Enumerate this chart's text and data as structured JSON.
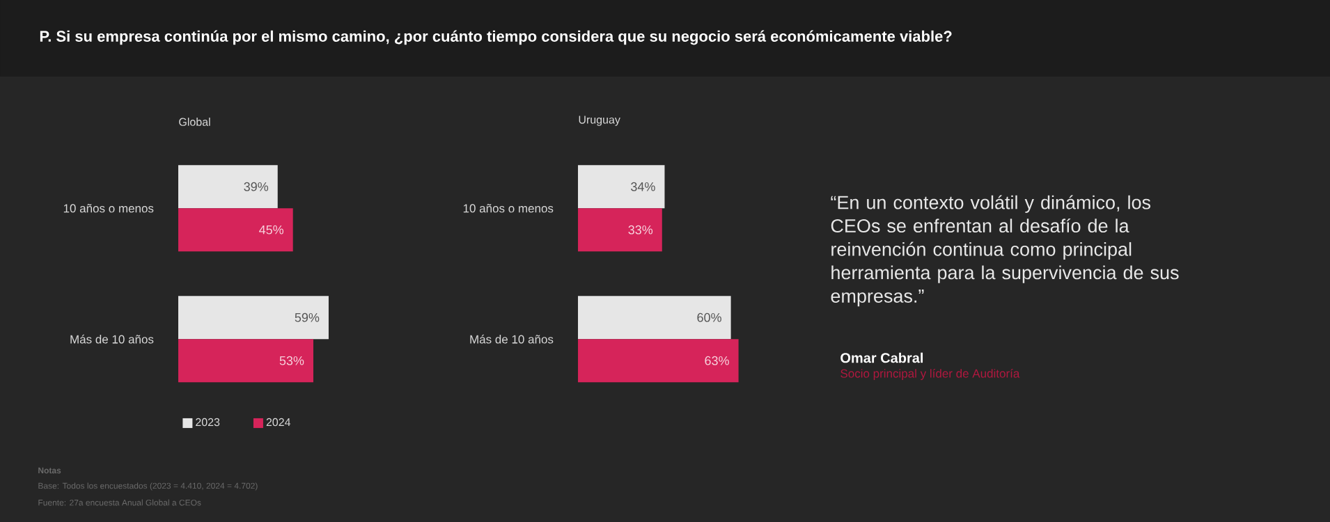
{
  "chart_data": [
    {
      "type": "other",
      "title": "P. Si su empresa continúa por el mismo camino, ¿por cuánto tiempo considera que su negocio será económicamente viable?"
    },
    {
      "type": "bar",
      "orientation": "horizontal",
      "title": "Global",
      "categories": [
        "10 años o menos",
        "Más de 10 años"
      ],
      "tick_labels": "y",
      "legend": "bottom",
      "series": [
        {
          "name": "2023",
          "color": "#e6e6e6",
          "values": [
            39,
            59
          ],
          "value_labels": [
            "39%",
            "59%"
          ]
        },
        {
          "name": "2024",
          "color": "#d6245a",
          "values": [
            45,
            53
          ],
          "value_labels": [
            "45%",
            "53%"
          ]
        }
      ],
      "annotations": [
        "Notas",
        "Base: Todos los encuestados (2023 = 4.410, 2024 = 4.702)",
        "Fuente: 27a encuesta Anual Global a CEOs"
      ]
    },
    {
      "type": "bar",
      "orientation": "horizontal",
      "title": "Uruguay",
      "categories": [
        "10 años o menos",
        "Más de 10 años"
      ],
      "tick_labels": "y",
      "series": [
        {
          "color": "#e6e6e6",
          "values": [
            34,
            60
          ],
          "value_labels": [
            "34%",
            "60%"
          ]
        },
        {
          "color": "#d6245a",
          "values": [
            33,
            63
          ],
          "value_labels": [
            "33%",
            "63%"
          ]
        }
      ]
    },
    {
      "type": "other",
      "annotations": [
        "“En un contexto volátil y dinámico, los CEOs se enfrentan al desafío de la reinvención continua como principal herramienta para la supervivencia de sus empresas.”",
        "Omar Cabral",
        "Socio principal y líder de Auditoría"
      ]
    }
  ]
}
